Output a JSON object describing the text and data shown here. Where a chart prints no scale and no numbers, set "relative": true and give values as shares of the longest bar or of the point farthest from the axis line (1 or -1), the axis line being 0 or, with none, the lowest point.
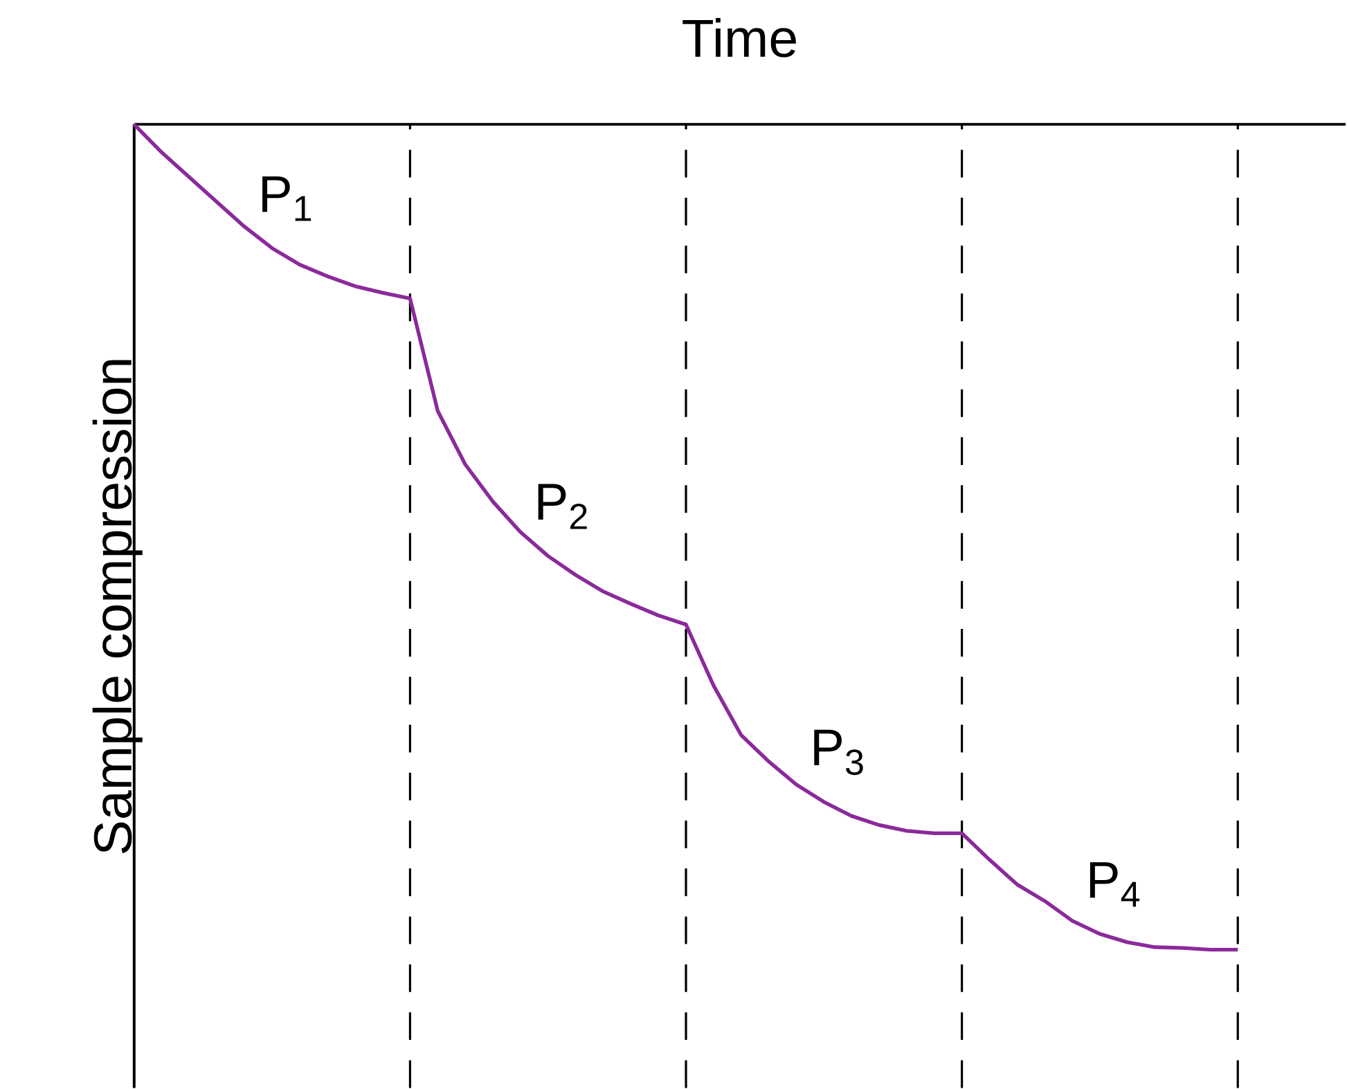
{
  "chart_data": {
    "type": "line",
    "relative": true,
    "xlabel": "Time",
    "ylabel": "Sample compression",
    "categories": [
      null,
      null,
      null,
      null,
      null,
      null,
      null,
      null,
      null,
      null,
      null,
      null,
      null,
      null,
      null,
      null,
      null,
      null,
      null,
      null,
      null,
      null,
      null,
      null,
      null,
      null,
      null,
      null,
      null,
      null,
      null,
      null,
      null,
      null,
      null,
      null,
      null,
      null,
      null,
      null,
      null
    ],
    "series": [
      {
        "color": "#8b2a9b",
        "values": [
          0,
          -0.034,
          -0.064,
          -0.094,
          -0.124,
          -0.15,
          -0.17,
          -0.184,
          -0.196,
          -0.204,
          -0.211,
          -0.347,
          -0.412,
          -0.457,
          -0.494,
          -0.523,
          -0.546,
          -0.566,
          -0.581,
          -0.595,
          -0.606,
          -0.68,
          -0.74,
          -0.772,
          -0.8,
          -0.821,
          -0.838,
          -0.849,
          -0.856,
          -0.859,
          -0.859,
          -0.891,
          -0.921,
          -0.941,
          -0.965,
          -0.981,
          -0.991,
          -0.997,
          -0.998,
          -1,
          -1
        ]
      }
    ],
    "grid": "x",
    "annotations": [
      "P$_{1}$",
      "P$_{2}$",
      "P$_{3}$",
      "P$_{4}$"
    ]
  }
}
